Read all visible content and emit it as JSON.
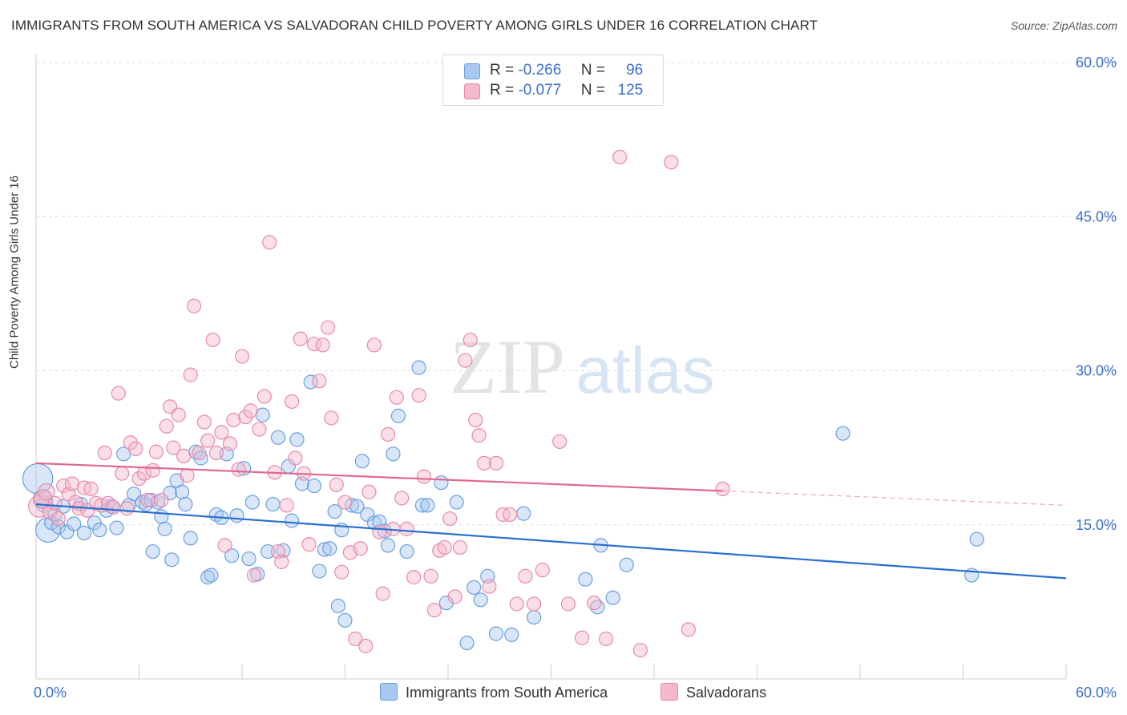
{
  "title": "IMMIGRANTS FROM SOUTH AMERICA VS SALVADORAN CHILD POVERTY AMONG GIRLS UNDER 16 CORRELATION CHART",
  "source": "Source: ZipAtlas.com",
  "watermark": {
    "zip": "ZIP",
    "atlas": "atlas"
  },
  "legend": {
    "rows": [
      {
        "r_label": "R =",
        "r_value": "-0.266",
        "n_label": "N =",
        "n_value": "96",
        "color": "#a8c8f0"
      },
      {
        "r_label": "R =",
        "r_value": "-0.077",
        "n_label": "N =",
        "n_value": "125",
        "color": "#f5b8cc"
      }
    ]
  },
  "chart_data": {
    "type": "scatter",
    "xlabel": "",
    "ylabel": "Child Poverty Among Girls Under 16",
    "xlim": [
      0,
      60
    ],
    "ylim": [
      0,
      60
    ],
    "x_tick_labels": [
      "0.0%",
      "60.0%"
    ],
    "y_ticks": [
      15,
      30,
      45,
      60
    ],
    "y_tick_labels": [
      "15.0%",
      "30.0%",
      "45.0%",
      "60.0%"
    ],
    "grid": "horizontal dashed",
    "legend_position": "bottom",
    "series": [
      {
        "name": "Immigrants from South America",
        "color": "#6a9fe0",
        "fill": "#a8c8f0",
        "line_color": "#2a6fd0",
        "trend": {
          "x": [
            0,
            60
          ],
          "y": [
            17.0,
            9.8
          ]
        },
        "points": [
          [
            0.1,
            19.5,
            2.2
          ],
          [
            0.4,
            17.5,
            1.4
          ],
          [
            0.5,
            17.0,
            1.2
          ],
          [
            0.7,
            14.5,
            1.8
          ],
          [
            0.9,
            15.2,
            1.0
          ],
          [
            1.1,
            16.0,
            1.0
          ],
          [
            1.3,
            14.8,
            1.0
          ],
          [
            1.6,
            16.8,
            1.0
          ],
          [
            1.8,
            14.3,
            1.0
          ],
          [
            2.2,
            15.1,
            1.0
          ],
          [
            2.6,
            17.0,
            1.0
          ],
          [
            2.8,
            14.2,
            1.0
          ],
          [
            3.4,
            15.2,
            1.0
          ],
          [
            3.7,
            14.5,
            1.0
          ],
          [
            4.1,
            16.4,
            1.0
          ],
          [
            4.4,
            16.8,
            1.0
          ],
          [
            4.7,
            14.7,
            1.0
          ],
          [
            5.1,
            21.9,
            1.0
          ],
          [
            5.4,
            16.9,
            1.0
          ],
          [
            5.7,
            18.0,
            1.0
          ],
          [
            6.2,
            17.2,
            1.0
          ],
          [
            6.4,
            17.0,
            1.0
          ],
          [
            6.7,
            17.4,
            1.0
          ],
          [
            6.8,
            12.4,
            1.0
          ],
          [
            7.1,
            17.2,
            1.0
          ],
          [
            7.3,
            15.8,
            1.0
          ],
          [
            7.5,
            14.6,
            1.0
          ],
          [
            7.8,
            18.1,
            1.0
          ],
          [
            7.9,
            11.6,
            1.0
          ],
          [
            8.2,
            19.3,
            1.0
          ],
          [
            8.5,
            18.2,
            1.0
          ],
          [
            8.7,
            17.0,
            1.0
          ],
          [
            9.0,
            13.7,
            1.0
          ],
          [
            9.3,
            22.1,
            1.0
          ],
          [
            9.6,
            21.5,
            1.0
          ],
          [
            10.0,
            9.9,
            1.0
          ],
          [
            10.2,
            10.1,
            1.0
          ],
          [
            10.5,
            16.0,
            1.0
          ],
          [
            10.8,
            15.7,
            1.0
          ],
          [
            11.1,
            21.9,
            1.0
          ],
          [
            11.4,
            12.0,
            1.0
          ],
          [
            11.7,
            15.9,
            1.0
          ],
          [
            12.1,
            20.5,
            1.0
          ],
          [
            12.4,
            11.7,
            1.0
          ],
          [
            12.6,
            17.2,
            1.0
          ],
          [
            12.9,
            10.2,
            1.0
          ],
          [
            13.2,
            25.7,
            1.0
          ],
          [
            13.5,
            12.4,
            1.0
          ],
          [
            13.8,
            17.0,
            1.0
          ],
          [
            14.1,
            23.5,
            1.0
          ],
          [
            14.4,
            12.5,
            1.0
          ],
          [
            14.7,
            20.7,
            1.0
          ],
          [
            14.9,
            15.4,
            1.0
          ],
          [
            15.2,
            23.3,
            1.0
          ],
          [
            15.5,
            19.0,
            1.0
          ],
          [
            16.0,
            28.9,
            1.0
          ],
          [
            16.2,
            18.8,
            1.0
          ],
          [
            16.5,
            10.5,
            1.0
          ],
          [
            16.8,
            12.6,
            1.0
          ],
          [
            17.1,
            12.7,
            1.0
          ],
          [
            17.4,
            16.3,
            1.0
          ],
          [
            17.6,
            7.1,
            1.0
          ],
          [
            17.8,
            14.5,
            1.0
          ],
          [
            18.0,
            5.7,
            1.0
          ],
          [
            18.4,
            16.9,
            1.0
          ],
          [
            18.7,
            16.8,
            1.0
          ],
          [
            19.0,
            21.2,
            1.0
          ],
          [
            19.3,
            16.0,
            1.0
          ],
          [
            19.7,
            15.2,
            1.0
          ],
          [
            20.0,
            15.3,
            1.0
          ],
          [
            20.3,
            14.4,
            1.0
          ],
          [
            20.5,
            13.0,
            1.0
          ],
          [
            20.8,
            21.9,
            1.0
          ],
          [
            21.1,
            25.6,
            1.0
          ],
          [
            21.6,
            12.4,
            1.0
          ],
          [
            22.3,
            30.3,
            1.0
          ],
          [
            22.5,
            16.9,
            1.0
          ],
          [
            22.8,
            16.9,
            1.0
          ],
          [
            23.6,
            19.1,
            1.0
          ],
          [
            23.9,
            7.4,
            1.0
          ],
          [
            24.5,
            17.2,
            1.0
          ],
          [
            25.1,
            3.5,
            1.0
          ],
          [
            25.5,
            8.9,
            1.0
          ],
          [
            25.9,
            7.7,
            1.0
          ],
          [
            26.3,
            10.0,
            1.0
          ],
          [
            26.8,
            4.4,
            1.0
          ],
          [
            27.7,
            4.3,
            1.0
          ],
          [
            28.4,
            16.1,
            1.0
          ],
          [
            29.0,
            6.0,
            1.0
          ],
          [
            32.0,
            9.7,
            1.0
          ],
          [
            32.7,
            7.0,
            1.0
          ],
          [
            32.9,
            13.0,
            1.0
          ],
          [
            33.6,
            7.9,
            1.0
          ],
          [
            34.4,
            11.1,
            1.0
          ],
          [
            47.0,
            23.9,
            1.0
          ],
          [
            54.5,
            10.1,
            1.0
          ],
          [
            54.8,
            13.6,
            1.0
          ]
        ]
      },
      {
        "name": "Salvadorans",
        "color": "#e88aa8",
        "fill": "#f5b8cc",
        "line_color": "#e06890",
        "trend": {
          "x": [
            0,
            40
          ],
          "y": [
            21.0,
            18.3
          ]
        },
        "trend_dashed": {
          "x": [
            40,
            60
          ],
          "y": [
            18.3,
            16.9
          ]
        },
        "points": [
          [
            0.2,
            16.8,
            1.6
          ],
          [
            0.4,
            17.5,
            1.3
          ],
          [
            0.6,
            18.2,
            1.2
          ],
          [
            0.8,
            16.2,
            1.0
          ],
          [
            1.1,
            17.1,
            1.0
          ],
          [
            1.3,
            15.6,
            1.0
          ],
          [
            1.6,
            18.8,
            1.0
          ],
          [
            1.9,
            18.0,
            1.0
          ],
          [
            2.1,
            19.0,
            1.0
          ],
          [
            2.3,
            17.2,
            1.0
          ],
          [
            2.5,
            16.6,
            1.0
          ],
          [
            2.8,
            18.6,
            1.0
          ],
          [
            3.0,
            16.4,
            1.0
          ],
          [
            3.2,
            18.5,
            1.0
          ],
          [
            3.5,
            17.1,
            1.0
          ],
          [
            3.8,
            16.9,
            1.0
          ],
          [
            4.0,
            22.0,
            1.0
          ],
          [
            4.2,
            17.1,
            1.0
          ],
          [
            4.5,
            16.7,
            1.0
          ],
          [
            4.8,
            27.8,
            1.0
          ],
          [
            5.0,
            20.0,
            1.0
          ],
          [
            5.3,
            16.6,
            1.0
          ],
          [
            5.5,
            23.0,
            1.0
          ],
          [
            5.8,
            22.4,
            1.0
          ],
          [
            6.0,
            19.5,
            1.0
          ],
          [
            6.3,
            20.0,
            1.0
          ],
          [
            6.5,
            17.4,
            1.0
          ],
          [
            6.8,
            20.3,
            1.0
          ],
          [
            7.0,
            22.1,
            1.0
          ],
          [
            7.3,
            17.4,
            1.0
          ],
          [
            7.6,
            24.6,
            1.0
          ],
          [
            7.8,
            26.5,
            1.0
          ],
          [
            8.0,
            22.5,
            1.0
          ],
          [
            8.3,
            25.7,
            1.0
          ],
          [
            8.6,
            21.7,
            1.0
          ],
          [
            8.8,
            19.8,
            1.0
          ],
          [
            9.0,
            29.6,
            1.0
          ],
          [
            9.2,
            36.3,
            1.0
          ],
          [
            9.5,
            22.0,
            1.0
          ],
          [
            9.8,
            25.0,
            1.0
          ],
          [
            10.0,
            23.2,
            1.0
          ],
          [
            10.3,
            33.0,
            1.0
          ],
          [
            10.5,
            22.0,
            1.0
          ],
          [
            10.8,
            24.0,
            1.0
          ],
          [
            11.0,
            13.0,
            1.0
          ],
          [
            11.3,
            22.9,
            1.0
          ],
          [
            11.5,
            25.2,
            1.0
          ],
          [
            11.8,
            20.4,
            1.0
          ],
          [
            12.0,
            31.4,
            1.0
          ],
          [
            12.2,
            25.5,
            1.0
          ],
          [
            12.5,
            26.1,
            1.0
          ],
          [
            12.7,
            10.1,
            1.0
          ],
          [
            13.0,
            24.3,
            1.0
          ],
          [
            13.3,
            27.5,
            1.0
          ],
          [
            13.6,
            42.5,
            1.0
          ],
          [
            13.9,
            20.1,
            1.0
          ],
          [
            14.1,
            12.4,
            1.0
          ],
          [
            14.3,
            11.4,
            1.0
          ],
          [
            14.6,
            16.9,
            1.0
          ],
          [
            14.9,
            27.0,
            1.0
          ],
          [
            15.1,
            21.5,
            1.0
          ],
          [
            15.4,
            33.1,
            1.0
          ],
          [
            15.6,
            20.0,
            1.0
          ],
          [
            15.9,
            13.1,
            1.0
          ],
          [
            16.2,
            32.6,
            1.0
          ],
          [
            16.5,
            29.0,
            1.0
          ],
          [
            16.7,
            32.5,
            1.0
          ],
          [
            17.0,
            34.2,
            1.0
          ],
          [
            17.2,
            25.4,
            1.0
          ],
          [
            17.5,
            18.9,
            1.0
          ],
          [
            17.8,
            10.4,
            1.0
          ],
          [
            18.0,
            17.2,
            1.0
          ],
          [
            18.3,
            12.3,
            1.0
          ],
          [
            18.6,
            3.9,
            1.0
          ],
          [
            18.9,
            12.7,
            1.0
          ],
          [
            19.2,
            3.2,
            1.0
          ],
          [
            19.4,
            18.2,
            1.0
          ],
          [
            19.7,
            32.5,
            1.0
          ],
          [
            20.0,
            14.3,
            1.0
          ],
          [
            20.2,
            8.3,
            1.0
          ],
          [
            20.5,
            23.8,
            1.0
          ],
          [
            20.8,
            14.6,
            1.0
          ],
          [
            21.0,
            27.4,
            1.0
          ],
          [
            21.3,
            17.6,
            1.0
          ],
          [
            21.6,
            14.6,
            1.0
          ],
          [
            22.0,
            9.9,
            1.0
          ],
          [
            22.3,
            27.6,
            1.0
          ],
          [
            22.6,
            19.7,
            1.0
          ],
          [
            23.0,
            10.0,
            1.0
          ],
          [
            23.2,
            6.7,
            1.0
          ],
          [
            23.5,
            12.5,
            1.0
          ],
          [
            23.8,
            12.8,
            1.0
          ],
          [
            24.1,
            15.6,
            1.0
          ],
          [
            24.4,
            8.0,
            1.0
          ],
          [
            24.7,
            12.8,
            1.0
          ],
          [
            25.0,
            31.0,
            1.0
          ],
          [
            25.3,
            33.0,
            1.0
          ],
          [
            25.6,
            25.2,
            1.0
          ],
          [
            25.8,
            23.7,
            1.0
          ],
          [
            26.1,
            21.0,
            1.0
          ],
          [
            26.4,
            9.0,
            1.0
          ],
          [
            26.8,
            21.0,
            1.0
          ],
          [
            27.2,
            16.0,
            1.0
          ],
          [
            27.6,
            16.0,
            1.0
          ],
          [
            28.0,
            7.3,
            1.0
          ],
          [
            28.5,
            10.0,
            1.0
          ],
          [
            29.0,
            7.3,
            1.0
          ],
          [
            29.5,
            10.6,
            1.0
          ],
          [
            30.5,
            23.1,
            1.0
          ],
          [
            31.0,
            7.3,
            1.0
          ],
          [
            31.8,
            4.0,
            1.0
          ],
          [
            32.5,
            7.4,
            1.0
          ],
          [
            33.2,
            3.9,
            1.0
          ],
          [
            34.0,
            50.8,
            1.0
          ],
          [
            35.2,
            2.8,
            1.0
          ],
          [
            37.0,
            50.3,
            1.0
          ],
          [
            38.0,
            4.8,
            1.0
          ],
          [
            40.0,
            18.5,
            1.0
          ]
        ]
      }
    ]
  }
}
